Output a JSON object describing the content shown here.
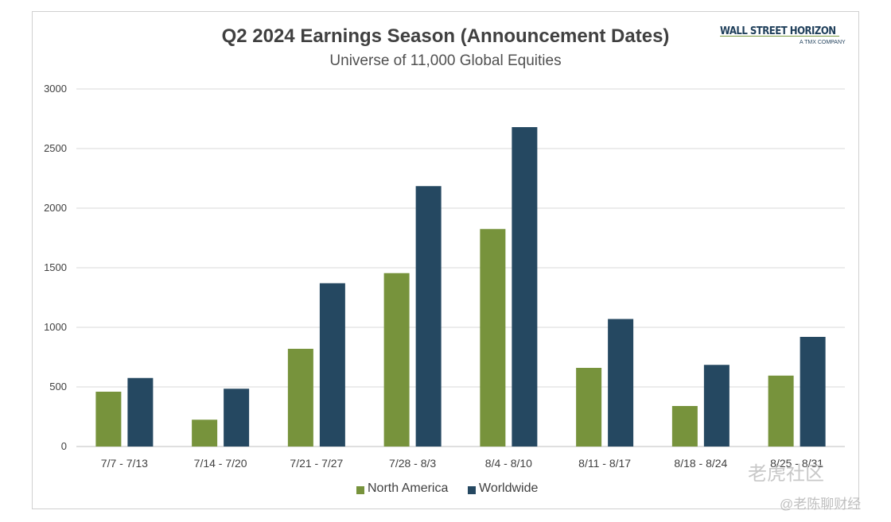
{
  "chart_data": {
    "type": "bar",
    "title": "Q2 2024 Earnings Season (Announcement Dates)",
    "subtitle": "Universe of 11,000 Global Equities",
    "categories": [
      "7/7 - 7/13",
      "7/14 - 7/20",
      "7/21 - 7/27",
      "7/28 - 8/3",
      "8/4 - 8/10",
      "8/11 - 8/17",
      "8/18 - 8/24",
      "8/25 - 8/31"
    ],
    "series": [
      {
        "name": "North America",
        "color": "#77933c",
        "values": [
          460,
          225,
          820,
          1455,
          1825,
          660,
          340,
          595
        ]
      },
      {
        "name": "Worldwide",
        "color": "#254861",
        "values": [
          575,
          485,
          1370,
          2185,
          2680,
          1070,
          685,
          920
        ]
      }
    ],
    "ylim": [
      0,
      3000
    ],
    "yticks": [
      "0",
      "500",
      "1000",
      "1500",
      "2000",
      "2500",
      "3000"
    ],
    "grid": true,
    "legend_position": "bottom"
  },
  "logo": {
    "name": "WALL STREET HORIZON",
    "sub": "A TMX COMPANY"
  },
  "watermark": {
    "line1": "老虎社区",
    "line2": "@老陈聊财经"
  }
}
